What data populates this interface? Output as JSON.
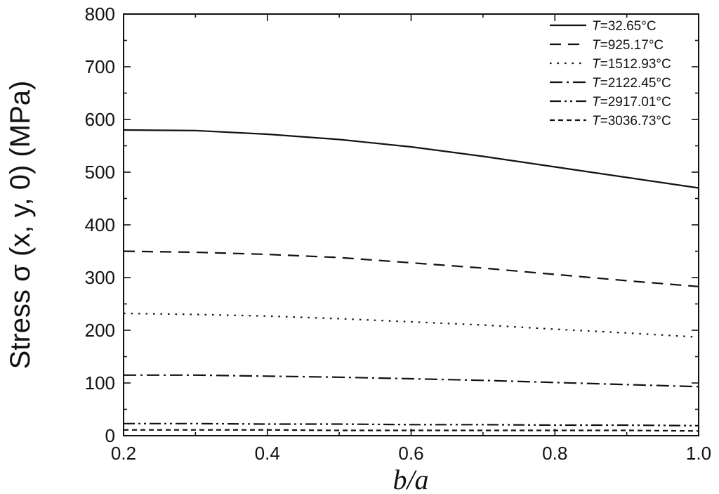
{
  "chart_data": {
    "type": "line",
    "xlabel": "b/a",
    "ylabel": "Stress σ (x, y, 0) (MPa)",
    "xlim": [
      0.2,
      1.0
    ],
    "ylim": [
      0,
      800
    ],
    "xticks": [
      "0.2",
      "0.4",
      "0.6",
      "0.8",
      "1.0"
    ],
    "yticks": [
      "0",
      "100",
      "200",
      "300",
      "400",
      "500",
      "600",
      "700",
      "800"
    ],
    "x": [
      0.2,
      0.3,
      0.4,
      0.5,
      0.6,
      0.7,
      0.8,
      0.9,
      1.0
    ],
    "legend_position": "top-right",
    "grid": false,
    "series": [
      {
        "name": "T=32.65°C",
        "dash": "solid",
        "values": [
          580,
          579,
          572,
          562,
          548,
          530,
          510,
          490,
          470
        ]
      },
      {
        "name": "T=925.17°C",
        "dash": "dash",
        "values": [
          350,
          348,
          344,
          338,
          328,
          318,
          306,
          294,
          283
        ]
      },
      {
        "name": "T=1512.93°C",
        "dash": "dot",
        "values": [
          232,
          230,
          227,
          222,
          216,
          210,
          202,
          195,
          187
        ]
      },
      {
        "name": "T=2122.45°C",
        "dash": "dashdot",
        "values": [
          115,
          115,
          113,
          111,
          108,
          105,
          101,
          97,
          93
        ]
      },
      {
        "name": "T=2917.01°C",
        "dash": "dashdotdot",
        "values": [
          23,
          23,
          22,
          22,
          21,
          21,
          20,
          20,
          19
        ]
      },
      {
        "name": "T=3036.73°C",
        "dash": "shortdash",
        "values": [
          11,
          11,
          11,
          10,
          10,
          10,
          10,
          10,
          9
        ]
      }
    ]
  }
}
